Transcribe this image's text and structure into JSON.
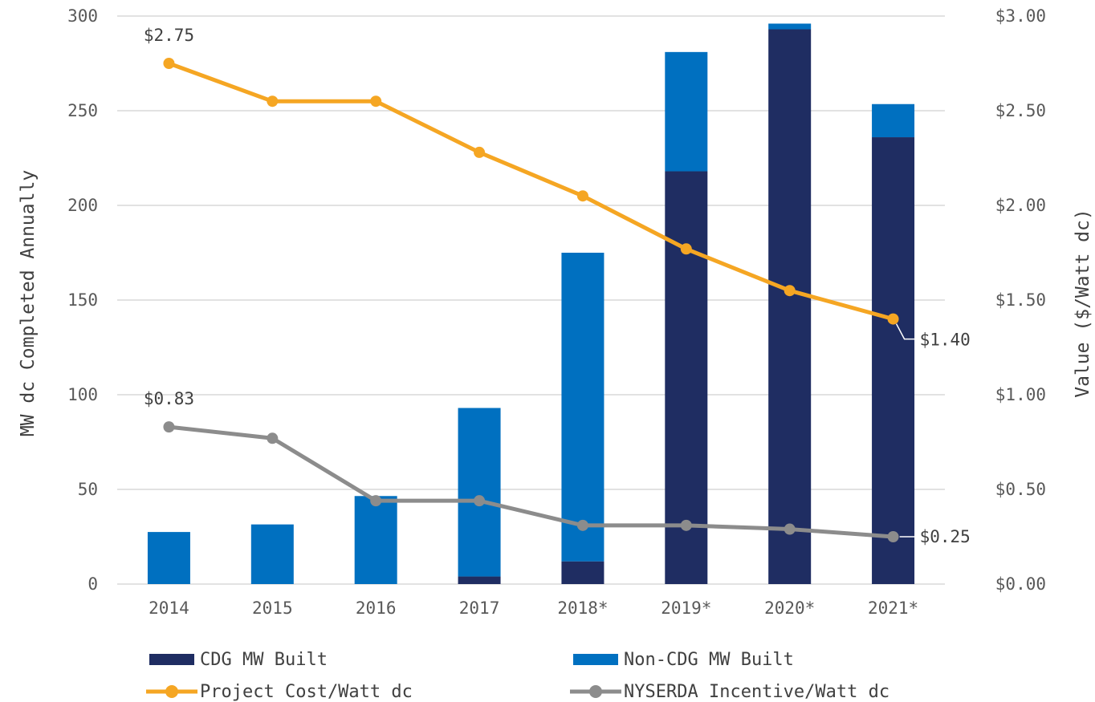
{
  "chart_data": {
    "type": "bar",
    "subtype": "stacked bar with line overlay on secondary axis",
    "categories": [
      "2014",
      "2015",
      "2016",
      "2017",
      "2018*",
      "2019*",
      "2020*",
      "2021*"
    ],
    "series": [
      {
        "name": "CDG MW Built",
        "kind": "bar",
        "axis": "left",
        "color": "#1f2d62",
        "values": [
          0,
          0,
          0,
          4,
          12,
          218,
          293,
          236
        ]
      },
      {
        "name": "Non-CDG MW Built",
        "kind": "bar",
        "axis": "left",
        "color": "#0070c0",
        "values": [
          27.5,
          31.5,
          46.5,
          89,
          163,
          63,
          3,
          17.5
        ]
      },
      {
        "name": "Project Cost/Watt dc",
        "kind": "line",
        "axis": "right",
        "color": "#f5a623",
        "values": [
          2.75,
          2.55,
          2.55,
          2.28,
          2.05,
          1.77,
          1.55,
          1.4
        ]
      },
      {
        "name": "NYSERDA Incentive/Watt dc",
        "kind": "line",
        "axis": "right",
        "color": "#8c8c8c",
        "values": [
          0.83,
          0.77,
          0.44,
          0.44,
          0.31,
          0.31,
          0.29,
          0.25
        ]
      }
    ],
    "ylabel": "MW dc Completed Annually",
    "y2label": "Value ($/Watt dc)",
    "ylim": [
      0,
      300
    ],
    "y2lim": [
      0,
      3
    ],
    "yticks": [
      "0",
      "50",
      "100",
      "150",
      "200",
      "250",
      "300"
    ],
    "y2ticks": [
      "$0.00",
      "$0.50",
      "$1.00",
      "$1.50",
      "$2.00",
      "$2.50",
      "$3.00"
    ],
    "annotations": [
      {
        "series": 2,
        "index": 0,
        "text": "$2.75"
      },
      {
        "series": 3,
        "index": 0,
        "text": "$0.83"
      },
      {
        "series": 2,
        "index": 7,
        "text": "$1.40"
      },
      {
        "series": 3,
        "index": 7,
        "text": "$0.25"
      }
    ],
    "grid": true,
    "legend": "bottom"
  }
}
